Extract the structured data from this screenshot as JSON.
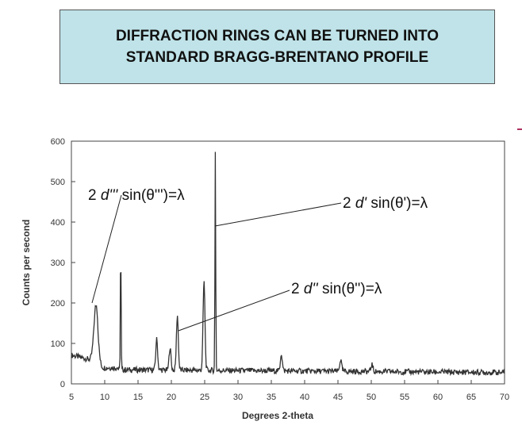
{
  "header": {
    "title_line1": "DIFFRACTION RINGS CAN BE TURNED INTO",
    "title_line2": "STANDARD BRAGG-BRENTANO PROFILE"
  },
  "chart_data": {
    "type": "line",
    "title": "",
    "xlabel": "Degrees 2-theta",
    "ylabel": "Counts per second",
    "xlim": [
      5,
      70
    ],
    "ylim": [
      0,
      600
    ],
    "x_ticks": [
      5,
      10,
      15,
      20,
      25,
      30,
      35,
      40,
      45,
      50,
      55,
      60,
      65,
      70
    ],
    "y_ticks": [
      0,
      100,
      200,
      300,
      400,
      500,
      600
    ],
    "grid": false,
    "background_level": 35,
    "peaks": [
      {
        "x": 8.7,
        "y": 195
      },
      {
        "x": 12.4,
        "y": 340
      },
      {
        "x": 17.8,
        "y": 110
      },
      {
        "x": 19.8,
        "y": 90
      },
      {
        "x": 20.9,
        "y": 170
      },
      {
        "x": 24.9,
        "y": 255
      },
      {
        "x": 26.6,
        "y": 575
      },
      {
        "x": 36.5,
        "y": 75
      },
      {
        "x": 45.4,
        "y": 60
      },
      {
        "x": 50.1,
        "y": 48
      }
    ],
    "annotations": [
      {
        "pre": "2 ",
        "var": "d'''",
        "post": " sin(θ''')=λ",
        "target_x": 8.7
      },
      {
        "pre": "2 ",
        "var": "d'",
        "post": " sin(θ')=λ",
        "target_x": 26.6
      },
      {
        "pre": "2 ",
        "var": "d''",
        "post": " sin(θ'')=λ",
        "target_x": 20.9
      }
    ],
    "line_color": "#333333"
  }
}
